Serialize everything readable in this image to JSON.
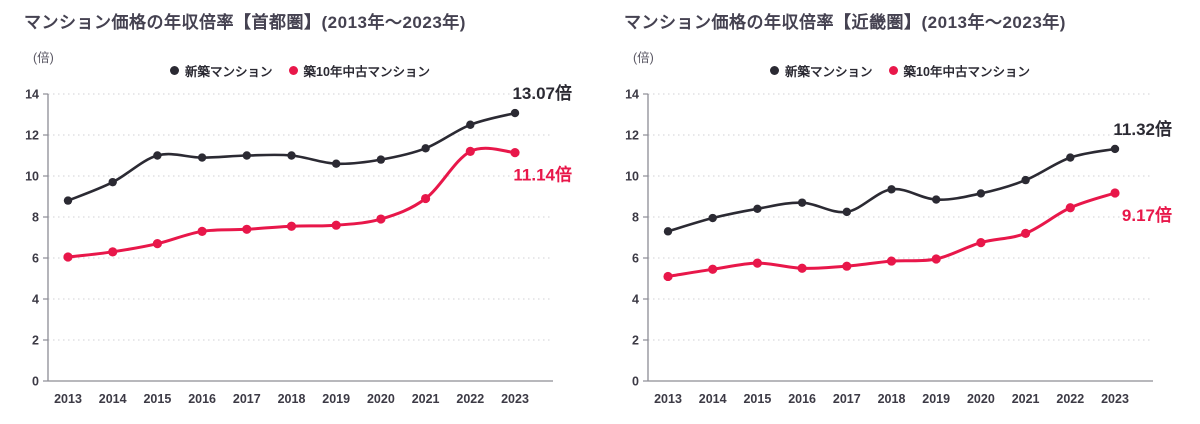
{
  "colors": {
    "new_series": "#2b2a33",
    "used_series": "#e8174a",
    "title_text": "#454251",
    "axis_text": "#3c3a45",
    "grid_line": "#d9d9dd",
    "axis_line": "#8d8d95",
    "background": "#ffffff"
  },
  "chart_data": [
    {
      "type": "line",
      "title": "マンション価格の年収倍率【首都圏】(2013年〜2023年)",
      "unit_label": "(倍)",
      "x": [
        2013,
        2014,
        2015,
        2016,
        2017,
        2018,
        2019,
        2020,
        2021,
        2022,
        2023
      ],
      "yticks": [
        0,
        2,
        4,
        6,
        8,
        10,
        12,
        14
      ],
      "ylim": [
        0,
        14
      ],
      "grid": "horizontal-dotted",
      "legend_position": "top-center",
      "series": [
        {
          "name": "新築マンション",
          "color": "#2b2a33",
          "values": [
            8.8,
            9.7,
            11.0,
            10.9,
            11.0,
            11.0,
            10.6,
            10.8,
            11.35,
            12.5,
            13.07
          ],
          "end_label": "13.07倍"
        },
        {
          "name": "築10年中古マンション",
          "color": "#e8174a",
          "values": [
            6.05,
            6.3,
            6.7,
            7.3,
            7.4,
            7.55,
            7.6,
            7.9,
            8.9,
            11.2,
            11.14
          ],
          "end_label": "11.14倍"
        }
      ]
    },
    {
      "type": "line",
      "title": "マンション価格の年収倍率【近畿圏】(2013年〜2023年)",
      "unit_label": "(倍)",
      "x": [
        2013,
        2014,
        2015,
        2016,
        2017,
        2018,
        2019,
        2020,
        2021,
        2022,
        2023
      ],
      "yticks": [
        0,
        2,
        4,
        6,
        8,
        10,
        12,
        14
      ],
      "ylim": [
        0,
        14
      ],
      "grid": "horizontal-dotted",
      "legend_position": "top-center",
      "series": [
        {
          "name": "新築マンション",
          "color": "#2b2a33",
          "values": [
            7.3,
            7.95,
            8.4,
            8.7,
            8.25,
            9.35,
            8.85,
            9.15,
            9.8,
            10.9,
            11.32
          ],
          "end_label": "11.32倍"
        },
        {
          "name": "築10年中古マンション",
          "color": "#e8174a",
          "values": [
            5.1,
            5.45,
            5.75,
            5.5,
            5.6,
            5.85,
            5.95,
            6.75,
            7.2,
            8.45,
            9.17
          ],
          "end_label": "9.17倍"
        }
      ]
    }
  ]
}
